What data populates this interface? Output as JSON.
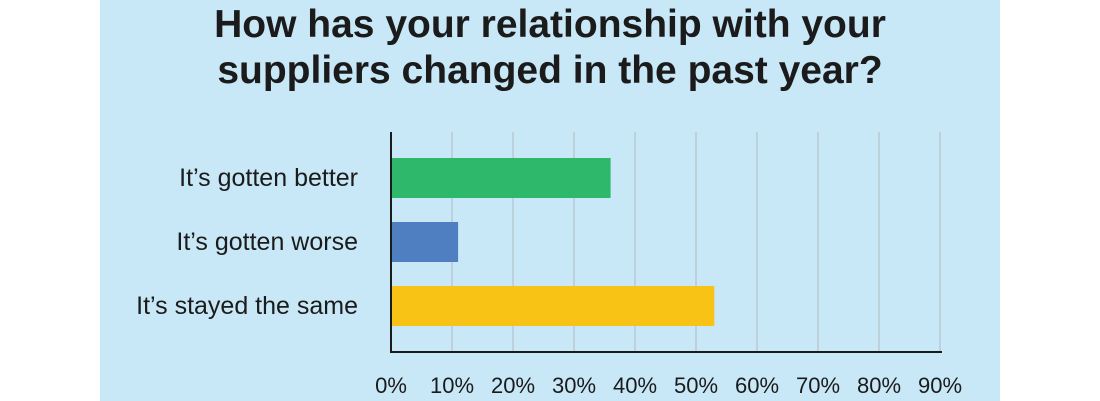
{
  "title_line1": "How has your relationship with your",
  "title_line2": "suppliers changed in the past year?",
  "colors": {
    "panel_bg": "#c8e8f8",
    "grid": "#b9c9d3",
    "axis": "#1b1b1b",
    "text": "#1b1b1b"
  },
  "chart_data": {
    "type": "bar",
    "orientation": "horizontal",
    "categories": [
      "It’s gotten better",
      "It’s gotten worse",
      "It’s stayed the same"
    ],
    "values": [
      36,
      11,
      53
    ],
    "colors": [
      "#2db86c",
      "#4f7fc1",
      "#f9c315"
    ],
    "xlim": [
      0,
      90
    ],
    "xticks": [
      "0%",
      "10%",
      "20%",
      "30%",
      "40%",
      "50%",
      "60%",
      "70%",
      "80%",
      "90%"
    ],
    "grid": true,
    "legend": "none"
  }
}
